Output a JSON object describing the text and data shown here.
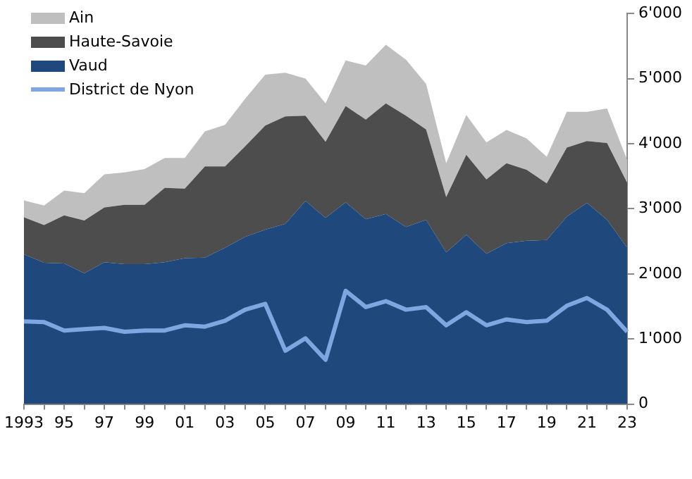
{
  "chart_data": {
    "type": "area",
    "stacked": true,
    "legend": "top left",
    "grid": false,
    "categories": [
      "1993",
      null,
      "95",
      null,
      "97",
      null,
      "99",
      null,
      "01",
      null,
      "03",
      null,
      "05",
      null,
      "07",
      null,
      "09",
      null,
      "11",
      null,
      "13",
      null,
      "15",
      null,
      "17",
      null,
      "19",
      null,
      "21",
      null,
      "23"
    ],
    "ylim": [
      0,
      6000
    ],
    "yticks": [
      {
        "value": 0,
        "label": "0"
      },
      {
        "value": 1000,
        "label": "1'000"
      },
      {
        "value": 2000,
        "label": "2'000"
      },
      {
        "value": 3000,
        "label": "3'000"
      },
      {
        "value": 4000,
        "label": "4'000"
      },
      {
        "value": 5000,
        "label": "5'000"
      },
      {
        "value": 6000,
        "label": "6'000"
      }
    ],
    "series": [
      {
        "name": "Vaud",
        "color": "#1f497d",
        "values": [
          2300,
          2170,
          2160,
          2010,
          2180,
          2150,
          2150,
          2180,
          2240,
          2250,
          2400,
          2570,
          2680,
          2770,
          3120,
          2860,
          3100,
          2840,
          2920,
          2720,
          2830,
          2330,
          2600,
          2310,
          2470,
          2510,
          2520,
          2880,
          3090,
          2830,
          2400
        ]
      },
      {
        "name": "Haute-Savoie",
        "color": "#4d4d4d",
        "values": [
          570,
          580,
          740,
          810,
          840,
          910,
          910,
          1140,
          1070,
          1400,
          1250,
          1390,
          1600,
          1650,
          1310,
          1170,
          1480,
          1530,
          1700,
          1710,
          1390,
          850,
          1230,
          1140,
          1230,
          1090,
          870,
          1060,
          950,
          1180,
          1000
        ]
      },
      {
        "name": "Ain",
        "color": "#bfbfbf",
        "values": [
          260,
          300,
          380,
          420,
          510,
          500,
          550,
          460,
          470,
          540,
          640,
          730,
          780,
          670,
          570,
          590,
          700,
          830,
          900,
          860,
          700,
          520,
          610,
          570,
          510,
          480,
          410,
          550,
          450,
          530,
          350
        ]
      },
      {
        "name": "District de Nyon",
        "type": "line",
        "color": "#7ea6e0",
        "values": [
          1270,
          1260,
          1130,
          1150,
          1170,
          1110,
          1130,
          1130,
          1210,
          1190,
          1280,
          1450,
          1540,
          820,
          1010,
          680,
          1740,
          1490,
          1580,
          1450,
          1490,
          1210,
          1410,
          1210,
          1300,
          1260,
          1280,
          1510,
          1630,
          1450,
          1110
        ]
      }
    ]
  }
}
